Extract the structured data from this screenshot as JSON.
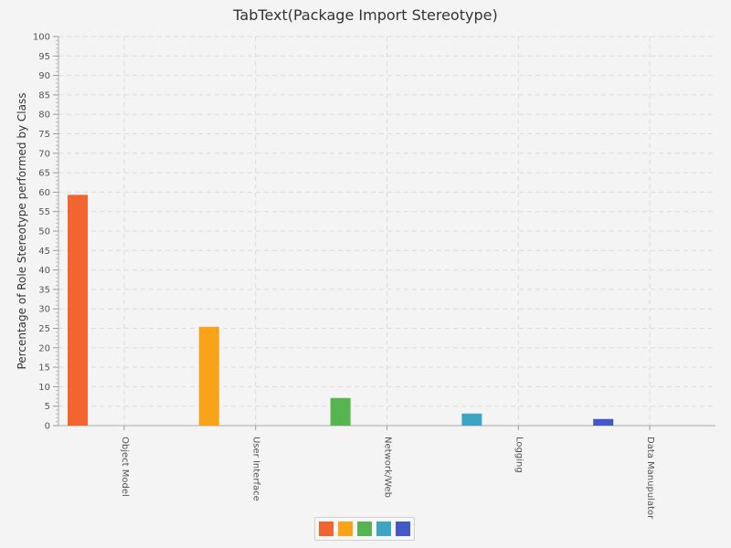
{
  "chart_data": {
    "type": "bar",
    "title": "TabText(Package Import Stereotype)",
    "ylabel": "Percentage of Role Stereotype performed by Class",
    "xlabel": "",
    "ylim": [
      0,
      100
    ],
    "ytick_step": 5,
    "grid": true,
    "categories": [
      "Object Model",
      "User Interface",
      "Network/Web",
      "Logging",
      "Data Manupulator"
    ],
    "values": [
      59.3,
      25.4,
      7.1,
      3.1,
      1.7
    ],
    "colors": [
      "#f26430",
      "#f9a31b",
      "#56b451",
      "#3ea4c4",
      "#4259c7"
    ],
    "legend": {
      "placement": "bottom-center",
      "entries": [
        "",
        "",
        "",
        "",
        ""
      ]
    }
  }
}
